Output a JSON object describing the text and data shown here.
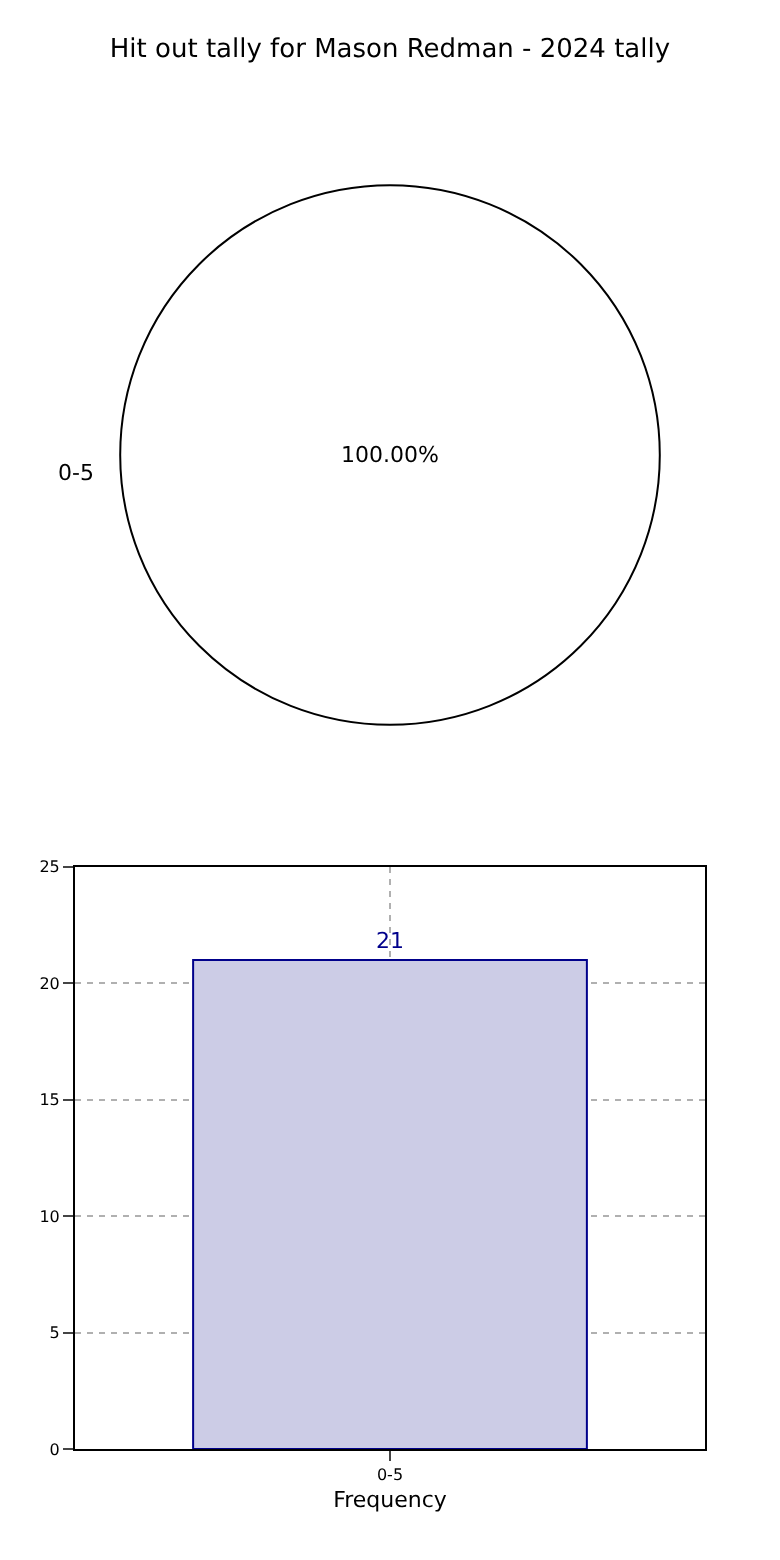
{
  "chart_data": [
    {
      "type": "pie",
      "title": "Hit out tally for Mason Redman - 2024 tally",
      "categories": [
        "0-5"
      ],
      "values": [
        100
      ],
      "colors": [
        "#ffffff"
      ],
      "value_labels": [
        "100.00%"
      ]
    },
    {
      "type": "bar",
      "categories": [
        "0-5"
      ],
      "values": [
        21
      ],
      "color": "#cccce6",
      "xlabel": "Frequency",
      "ylim": [
        0,
        25
      ],
      "yticks": [
        0,
        5,
        10,
        15,
        20,
        25
      ],
      "grid": true,
      "data_labels": true
    }
  ]
}
